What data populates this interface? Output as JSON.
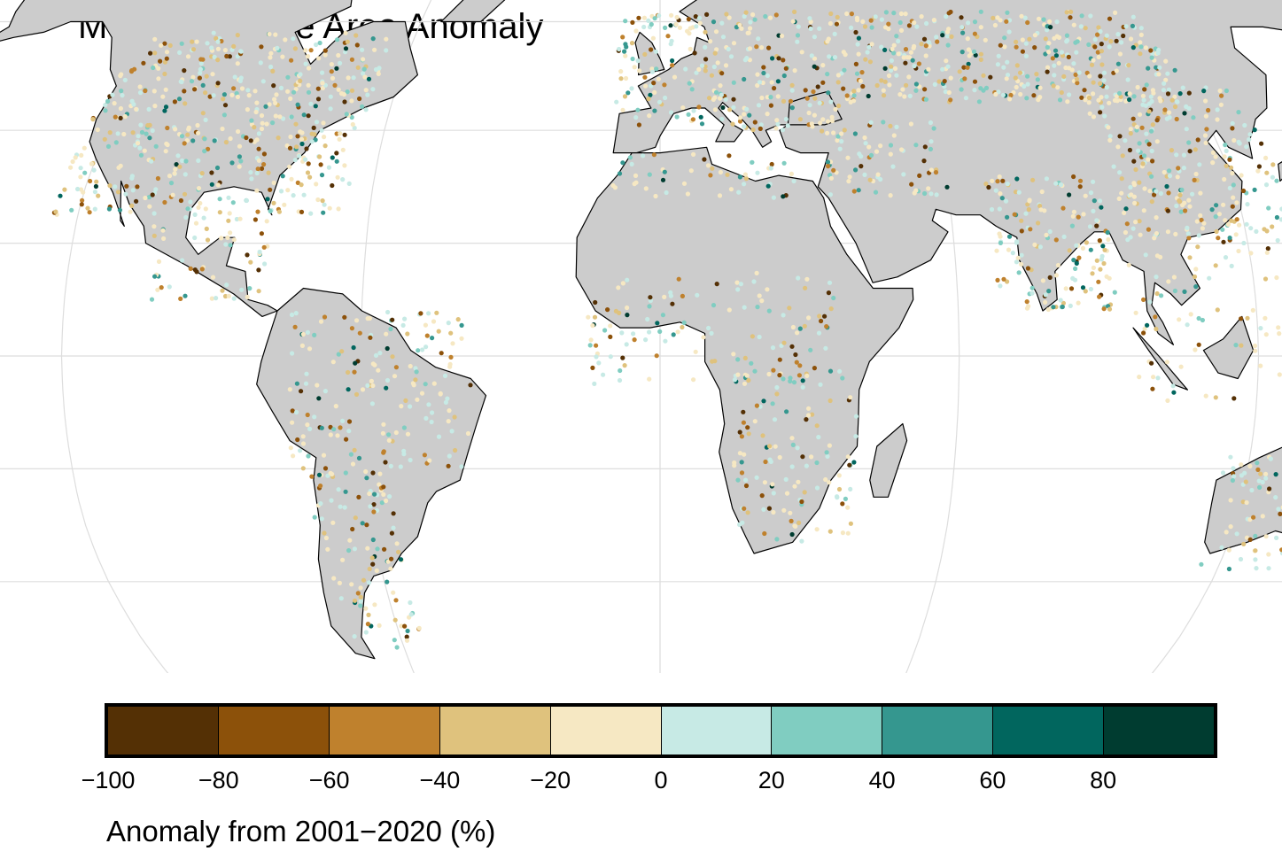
{
  "title": "MOGWAI Lake Area Anomaly",
  "legend": {
    "title": "Anomaly from 2001−2020 (%)",
    "bins": [
      {
        "from": -100,
        "to": -80,
        "color": "#543005"
      },
      {
        "from": -80,
        "to": -60,
        "color": "#8C510A"
      },
      {
        "from": -60,
        "to": -40,
        "color": "#BF812D"
      },
      {
        "from": -40,
        "to": -20,
        "color": "#DFC27D"
      },
      {
        "from": -20,
        "to": 0,
        "color": "#F6E8C3"
      },
      {
        "from": 0,
        "to": 20,
        "color": "#C7EAE5"
      },
      {
        "from": 20,
        "to": 40,
        "color": "#80CDC1"
      },
      {
        "from": 40,
        "to": 60,
        "color": "#35978F"
      },
      {
        "from": 60,
        "to": 80,
        "color": "#01665E"
      },
      {
        "from": 80,
        "to": 100,
        "color": "#003C30"
      }
    ],
    "tick_labels": [
      "−100",
      "−80",
      "−60",
      "−40",
      "−20",
      "0",
      "20",
      "40",
      "60",
      "80"
    ]
  },
  "map": {
    "projection": "Robinson",
    "land_color": "#CCCCCC",
    "graticule_color": "#DDDDDD",
    "coastline_color": "#000000",
    "point_clusters": [
      {
        "region": "North America",
        "lon": [
          -125,
          -65
        ],
        "lat": [
          25,
          58
        ],
        "count": 520
      },
      {
        "region": "Central America",
        "lon": [
          -105,
          -80
        ],
        "lat": [
          10,
          25
        ],
        "count": 60
      },
      {
        "region": "South America north",
        "lon": [
          -75,
          -38
        ],
        "lat": [
          -20,
          8
        ],
        "count": 170
      },
      {
        "region": "South America south",
        "lon": [
          -72,
          -55
        ],
        "lat": [
          -52,
          -20
        ],
        "count": 110
      },
      {
        "region": "Europe",
        "lon": [
          -10,
          40
        ],
        "lat": [
          40,
          62
        ],
        "count": 260
      },
      {
        "region": "Russia / Central Asia",
        "lon": [
          40,
          120
        ],
        "lat": [
          45,
          62
        ],
        "count": 420
      },
      {
        "region": "Middle East",
        "lon": [
          35,
          60
        ],
        "lat": [
          28,
          42
        ],
        "count": 80
      },
      {
        "region": "North Africa",
        "lon": [
          -10,
          30
        ],
        "lat": [
          28,
          36
        ],
        "count": 50
      },
      {
        "region": "West / Central Africa",
        "lon": [
          -15,
          35
        ],
        "lat": [
          -5,
          15
        ],
        "count": 120
      },
      {
        "region": "East / South Africa",
        "lon": [
          15,
          40
        ],
        "lat": [
          -33,
          -2
        ],
        "count": 130
      },
      {
        "region": "South Asia",
        "lon": [
          68,
          92
        ],
        "lat": [
          8,
          32
        ],
        "count": 160
      },
      {
        "region": "China / East Asia",
        "lon": [
          95,
          130
        ],
        "lat": [
          20,
          48
        ],
        "count": 260
      },
      {
        "region": "Southeast Asia",
        "lon": [
          95,
          125
        ],
        "lat": [
          -8,
          20
        ],
        "count": 70
      },
      {
        "region": "Australia",
        "lon": [
          115,
          153
        ],
        "lat": [
          -38,
          -17
        ],
        "count": 150
      },
      {
        "region": "New Zealand",
        "lon": [
          167,
          178
        ],
        "lat": [
          -46,
          -35
        ],
        "count": 15
      }
    ]
  }
}
